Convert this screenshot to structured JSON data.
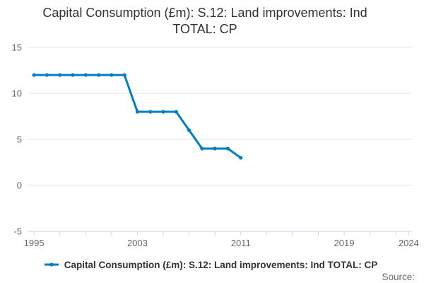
{
  "title": {
    "line1": "Capital Consumption (£m): S.12: Land improvements: Ind",
    "line2": "TOTAL: CP"
  },
  "legend": {
    "label": "Capital Consumption (£m): S.12: Land improvements: Ind TOTAL: CP"
  },
  "footer": {
    "source_label": "Source:"
  },
  "colors": {
    "series": "#007dc3",
    "grid": "#e6e6e6",
    "axis_line": "#ccd6eb",
    "title_text": "#333333",
    "axis_label_text": "#666666",
    "legend_text": "#333333",
    "source_text": "#666666"
  },
  "chart_data": {
    "type": "line",
    "title": "Capital Consumption (£m): S.12: Land improvements: Ind TOTAL: CP",
    "xlabel": "",
    "ylabel": "",
    "x": [
      1995,
      1996,
      1997,
      1998,
      1999,
      2000,
      2001,
      2002,
      2003,
      2004,
      2005,
      2006,
      2007,
      2008,
      2009,
      2010,
      2011
    ],
    "series": [
      {
        "name": "Capital Consumption (£m): S.12: Land improvements: Ind TOTAL: CP",
        "values": [
          12,
          12,
          12,
          12,
          12,
          12,
          12,
          12,
          8,
          8,
          8,
          8,
          6,
          4,
          4,
          4,
          3
        ]
      }
    ],
    "xlim": [
      1994.5,
      2024.25
    ],
    "ylim": [
      -5,
      15
    ],
    "y_ticks": [
      -5,
      0,
      5,
      10,
      15
    ],
    "x_ticks": [
      1995,
      1997,
      1999,
      2001,
      2003,
      2005,
      2007,
      2009,
      2011,
      2013,
      2015,
      2017,
      2019,
      2021,
      2023,
      2024
    ],
    "x_labeled_ticks": [
      1995,
      2003,
      2011,
      2019,
      2024
    ],
    "grid": "horizontal",
    "markers": true,
    "legend_position": "bottom"
  }
}
